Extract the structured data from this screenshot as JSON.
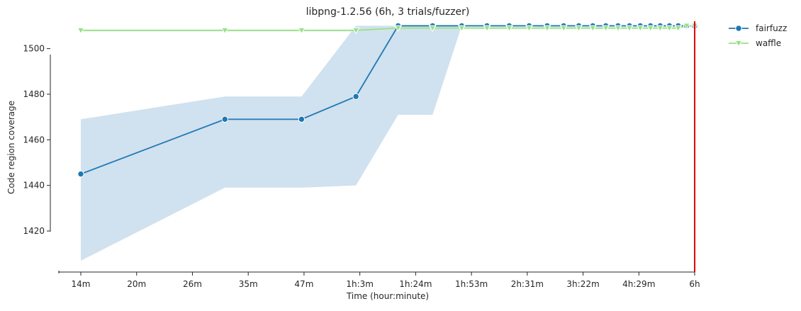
{
  "chart_data": {
    "type": "line",
    "title": "libpng-1.2.56 (6h, 3 trials/fuzzer)",
    "xlabel": "Time (hour:minute)",
    "ylabel": "Code region coverage",
    "x_ticks": [
      "14m",
      "20m",
      "26m",
      "35m",
      "47m",
      "1h:3m",
      "1h:24m",
      "1h:53m",
      "2h:31m",
      "3h:22m",
      "4h:29m",
      "6h"
    ],
    "y_ticks": [
      1420,
      1440,
      1460,
      1480,
      1500
    ],
    "ylim": [
      1402,
      1512
    ],
    "x_scale": "log",
    "x_minutes_range": [
      14,
      360
    ],
    "legend_position": "top-right, outside plot",
    "marker_line": {
      "x_minutes": 360,
      "color": "#e00000"
    },
    "series": [
      {
        "name": "fairfuzz",
        "color": "#1f77b4",
        "band_color": "#aac8e1",
        "marker": "circle",
        "points": [
          {
            "x": 14,
            "y": 1445,
            "lo": 1407,
            "hi": 1469
          },
          {
            "x": 30,
            "y": 1469,
            "lo": 1439,
            "hi": 1479
          },
          {
            "x": 45,
            "y": 1469,
            "lo": 1439,
            "hi": 1479
          },
          {
            "x": 60,
            "y": 1479,
            "lo": 1440,
            "hi": 1510
          },
          {
            "x": 75,
            "y": 1510,
            "lo": 1471,
            "hi": 1510
          },
          {
            "x": 90,
            "y": 1510,
            "lo": 1471,
            "hi": 1510
          },
          {
            "x": 105,
            "y": 1510,
            "lo": 1510,
            "hi": 1510
          },
          {
            "x": 120,
            "y": 1510,
            "lo": 1510,
            "hi": 1510
          },
          {
            "x": 135,
            "y": 1510,
            "lo": 1510,
            "hi": 1510
          },
          {
            "x": 150,
            "y": 1510,
            "lo": 1510,
            "hi": 1510
          },
          {
            "x": 165,
            "y": 1510,
            "lo": 1510,
            "hi": 1510
          },
          {
            "x": 180,
            "y": 1510,
            "lo": 1510,
            "hi": 1510
          },
          {
            "x": 195,
            "y": 1510,
            "lo": 1510,
            "hi": 1510
          },
          {
            "x": 210,
            "y": 1510,
            "lo": 1510,
            "hi": 1510
          },
          {
            "x": 225,
            "y": 1510,
            "lo": 1510,
            "hi": 1510
          },
          {
            "x": 240,
            "y": 1510,
            "lo": 1510,
            "hi": 1510
          },
          {
            "x": 255,
            "y": 1510,
            "lo": 1510,
            "hi": 1510
          },
          {
            "x": 270,
            "y": 1510,
            "lo": 1510,
            "hi": 1510
          },
          {
            "x": 285,
            "y": 1510,
            "lo": 1510,
            "hi": 1510
          },
          {
            "x": 300,
            "y": 1510,
            "lo": 1510,
            "hi": 1510
          },
          {
            "x": 315,
            "y": 1510,
            "lo": 1510,
            "hi": 1510
          },
          {
            "x": 330,
            "y": 1510,
            "lo": 1510,
            "hi": 1510
          },
          {
            "x": 345,
            "y": 1510,
            "lo": 1510,
            "hi": 1510
          },
          {
            "x": 360,
            "y": 1510,
            "lo": 1510,
            "hi": 1510
          }
        ]
      },
      {
        "name": "waffle",
        "color": "#98df8a",
        "band_color": "#d5f2cf",
        "marker": "triangle-down",
        "points": [
          {
            "x": 14,
            "y": 1508,
            "lo": 1507.5,
            "hi": 1508.5
          },
          {
            "x": 30,
            "y": 1508,
            "lo": 1507.5,
            "hi": 1508.5
          },
          {
            "x": 45,
            "y": 1508,
            "lo": 1507.5,
            "hi": 1508.5
          },
          {
            "x": 60,
            "y": 1508,
            "lo": 1507.5,
            "hi": 1508.5
          },
          {
            "x": 75,
            "y": 1509,
            "lo": 1508.5,
            "hi": 1509.5
          },
          {
            "x": 90,
            "y": 1509,
            "lo": 1508.5,
            "hi": 1509.5
          },
          {
            "x": 105,
            "y": 1509,
            "lo": 1508.5,
            "hi": 1509.5
          },
          {
            "x": 120,
            "y": 1509,
            "lo": 1508.5,
            "hi": 1509.5
          },
          {
            "x": 135,
            "y": 1509,
            "lo": 1508.5,
            "hi": 1509.5
          },
          {
            "x": 150,
            "y": 1509,
            "lo": 1508.5,
            "hi": 1509.5
          },
          {
            "x": 165,
            "y": 1509,
            "lo": 1508.5,
            "hi": 1509.5
          },
          {
            "x": 180,
            "y": 1509,
            "lo": 1508.5,
            "hi": 1509.5
          },
          {
            "x": 195,
            "y": 1509,
            "lo": 1508.5,
            "hi": 1509.5
          },
          {
            "x": 210,
            "y": 1509,
            "lo": 1508.5,
            "hi": 1509.5
          },
          {
            "x": 225,
            "y": 1509,
            "lo": 1508.5,
            "hi": 1509.5
          },
          {
            "x": 240,
            "y": 1509,
            "lo": 1508.5,
            "hi": 1509.5
          },
          {
            "x": 255,
            "y": 1509,
            "lo": 1508.5,
            "hi": 1509.5
          },
          {
            "x": 270,
            "y": 1509,
            "lo": 1508.5,
            "hi": 1509.5
          },
          {
            "x": 285,
            "y": 1509,
            "lo": 1508.5,
            "hi": 1509.5
          },
          {
            "x": 300,
            "y": 1509,
            "lo": 1508.5,
            "hi": 1509.5
          },
          {
            "x": 315,
            "y": 1509,
            "lo": 1508.5,
            "hi": 1509.5
          },
          {
            "x": 330,
            "y": 1509,
            "lo": 1508.5,
            "hi": 1509.5
          },
          {
            "x": 345,
            "y": 1510,
            "lo": 1509.5,
            "hi": 1510.5
          },
          {
            "x": 360,
            "y": 1510,
            "lo": 1509.5,
            "hi": 1510.5
          }
        ]
      }
    ]
  }
}
